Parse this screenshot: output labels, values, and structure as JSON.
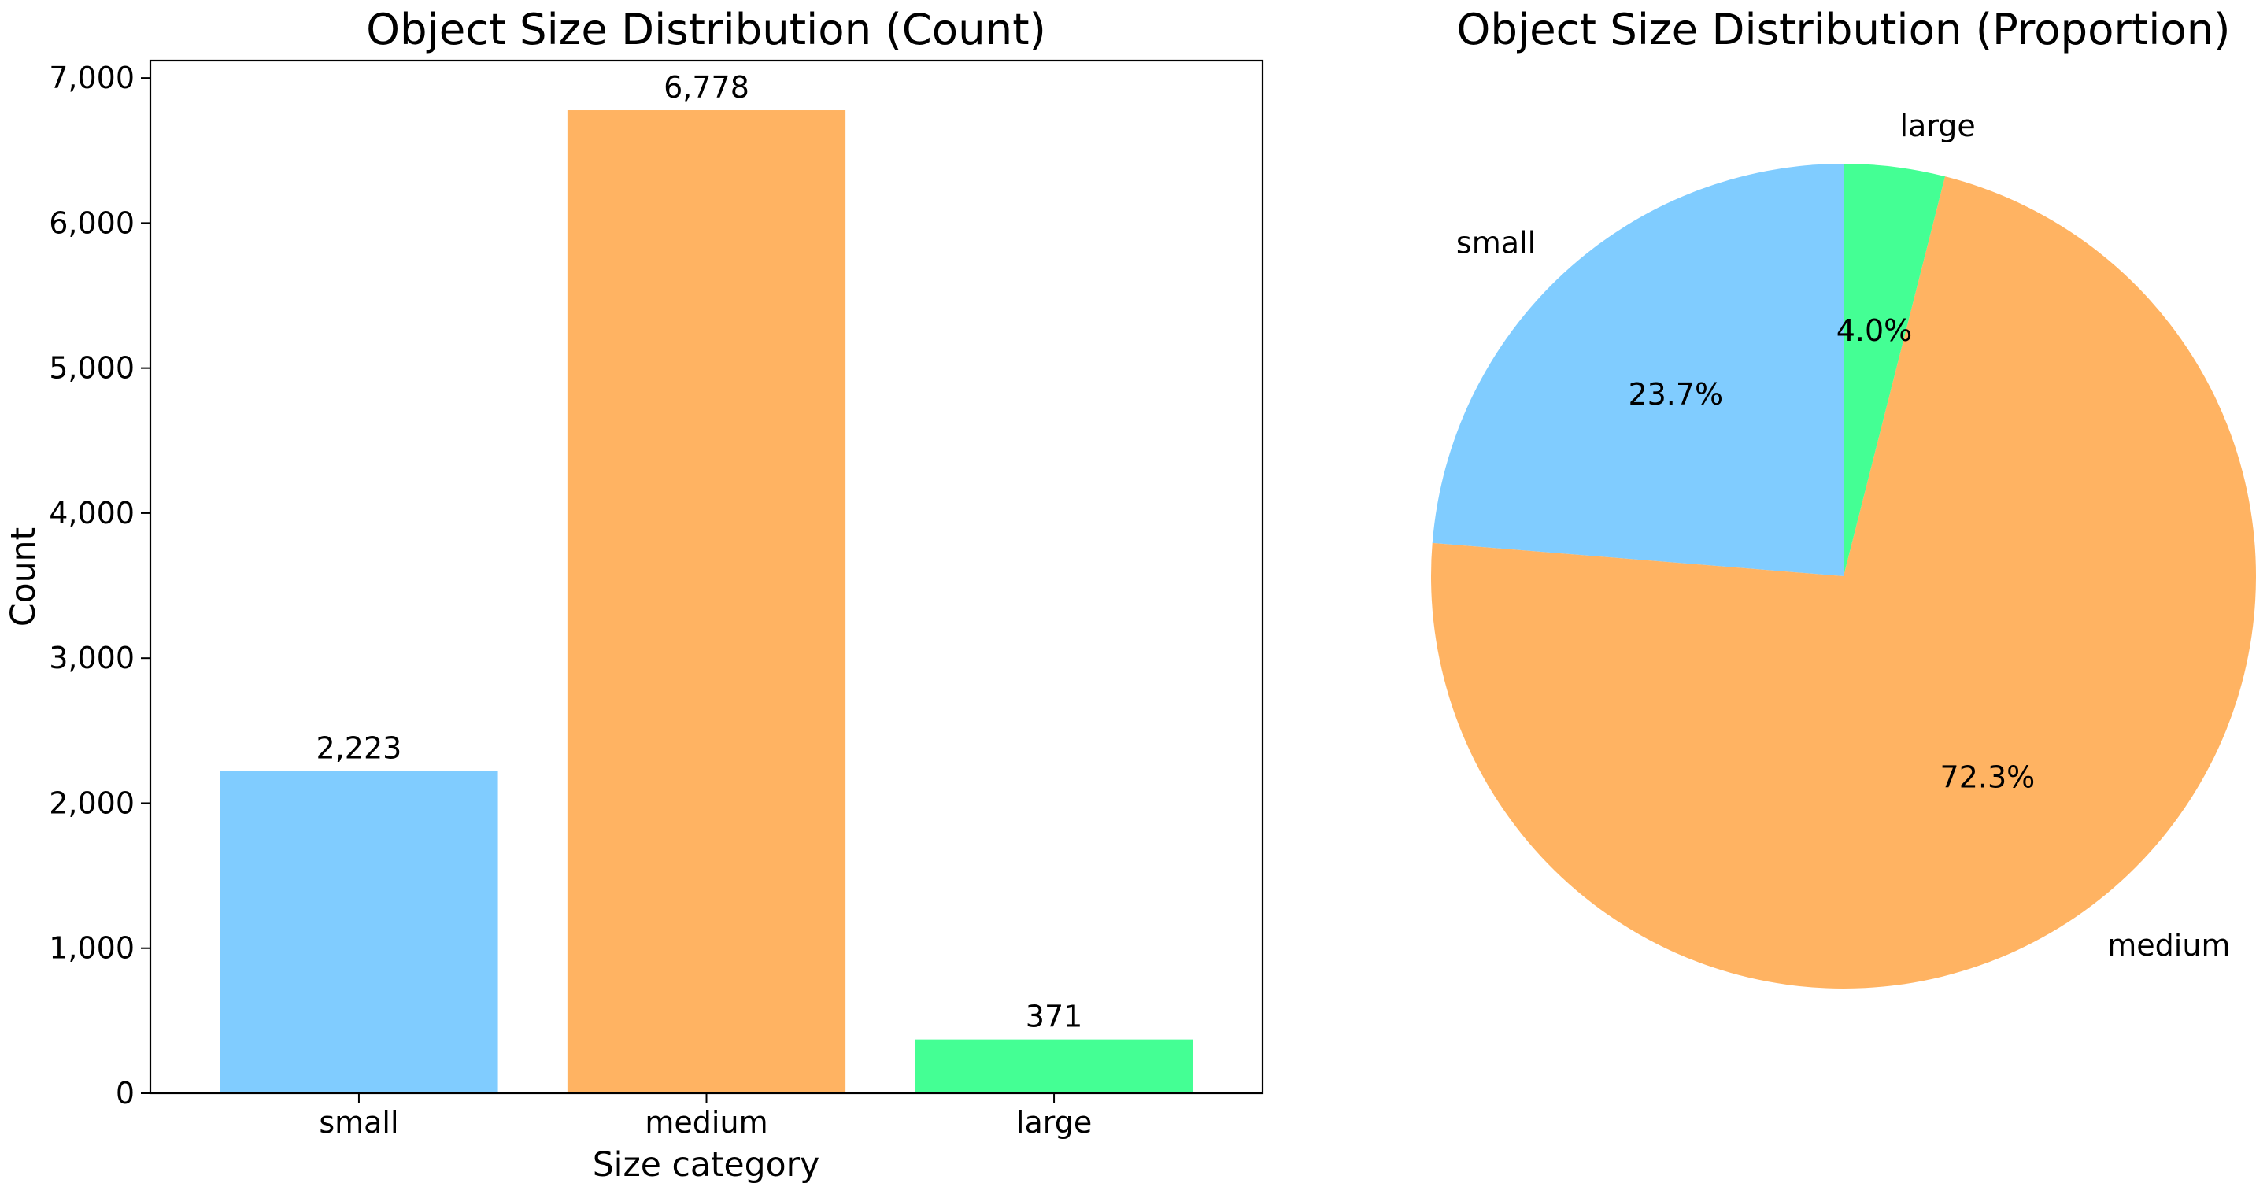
{
  "chart_data": [
    {
      "type": "bar",
      "title": "Object Size Distribution (Count)",
      "xlabel": "Size category",
      "ylabel": "Count",
      "categories": [
        "small",
        "medium",
        "large"
      ],
      "values": [
        2223,
        6778,
        371
      ],
      "value_labels": [
        "2,223",
        "6,778",
        "371"
      ],
      "colors": [
        "#80ccff",
        "#ffb362",
        "#44ff94"
      ],
      "ylim": [
        0,
        7120
      ],
      "yticks": [
        0,
        1000,
        2000,
        3000,
        4000,
        5000,
        6000,
        7000
      ],
      "ytick_labels": [
        "0",
        "1,000",
        "2,000",
        "3,000",
        "4,000",
        "5,000",
        "6,000",
        "7,000"
      ],
      "grid": false,
      "legend": false
    },
    {
      "type": "pie",
      "title": "Object Size Distribution (Proportion)",
      "labels": [
        "small",
        "medium",
        "large"
      ],
      "values": [
        2223,
        6778,
        371
      ],
      "percent_labels": [
        "23.7%",
        "72.3%",
        "4.0%"
      ],
      "colors": [
        "#80ccff",
        "#ffb362",
        "#44ff94"
      ],
      "start_angle_deg": 90,
      "direction": "counterclockwise",
      "legend": false
    }
  ]
}
